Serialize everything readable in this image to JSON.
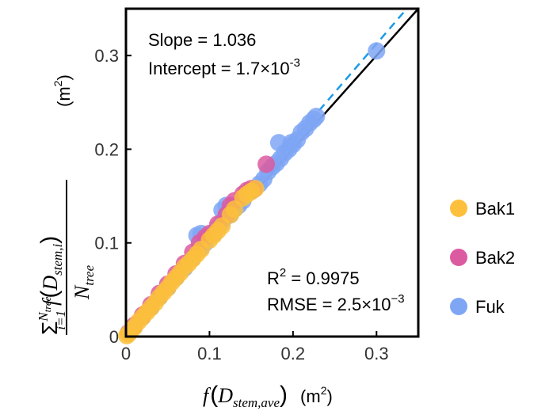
{
  "chart_data": {
    "type": "scatter",
    "title": "",
    "xlabel": "f(D_stem,ave) (m²)",
    "ylabel": "Σ_{i=1}^{N_tree} f(D_stem,i) / N_tree (m²)",
    "xlim": [
      0,
      0.35
    ],
    "ylim": [
      0,
      0.35
    ],
    "x_ticks": [
      0,
      0.1,
      0.2,
      0.3
    ],
    "y_ticks": [
      0,
      0.1,
      0.2,
      0.3
    ],
    "x_tick_labels": [
      "0",
      "0.1",
      "0.2",
      "0.3"
    ],
    "y_tick_labels": [
      "0",
      "0.1",
      "0.2",
      "0.3"
    ],
    "grid": false,
    "legend_position": "right",
    "reference_lines": [
      {
        "type": "1:1",
        "style": "solid",
        "color": "#000000"
      },
      {
        "type": "fit",
        "style": "dashed",
        "color": "#1a9be8",
        "slope": 1.036,
        "intercept": 0.0017
      }
    ],
    "annotations": {
      "slope": "Slope = 1.036",
      "intercept_prefix": "Intercept = 1.7×10",
      "intercept_exp": "-3",
      "r2_prefix": "R",
      "r2_sup": "2",
      "r2_suffix": " = 0.9975",
      "rmse_prefix": "RMSE = 2.5×10",
      "rmse_exp": "−3"
    },
    "axis_labels": {
      "x_f": "f",
      "x_D": "D",
      "x_sub": "stem,ave",
      "x_unit": "(m",
      "x_unit_sup": "2",
      "x_unit_close": ")",
      "y_sigma": "Σ",
      "y_sum_sup": "N",
      "y_sum_sup_sub": "tree",
      "y_sum_sub": "i=1",
      "y_f": "f",
      "y_D": "D",
      "y_sub": "stem,i",
      "y_den": "N",
      "y_den_sub": "tree",
      "y_unit": "(m",
      "y_unit_sup": "2",
      "y_unit_close": ")"
    },
    "series": [
      {
        "name": "Fuk",
        "color": "#7fa6f5",
        "points": [
          [
            0.004,
            0.004
          ],
          [
            0.01,
            0.011
          ],
          [
            0.02,
            0.021
          ],
          [
            0.03,
            0.031
          ],
          [
            0.04,
            0.042
          ],
          [
            0.05,
            0.052
          ],
          [
            0.06,
            0.063
          ],
          [
            0.07,
            0.073
          ],
          [
            0.08,
            0.084
          ],
          [
            0.09,
            0.095
          ],
          [
            0.095,
            0.1
          ],
          [
            0.1,
            0.108
          ],
          [
            0.105,
            0.11
          ],
          [
            0.11,
            0.116
          ],
          [
            0.115,
            0.122
          ],
          [
            0.12,
            0.128
          ],
          [
            0.125,
            0.13
          ],
          [
            0.13,
            0.136
          ],
          [
            0.135,
            0.14
          ],
          [
            0.14,
            0.145
          ],
          [
            0.15,
            0.155
          ],
          [
            0.16,
            0.163
          ],
          [
            0.165,
            0.168
          ],
          [
            0.17,
            0.176
          ],
          [
            0.175,
            0.181
          ],
          [
            0.18,
            0.185
          ],
          [
            0.185,
            0.19
          ],
          [
            0.19,
            0.196
          ],
          [
            0.195,
            0.2
          ],
          [
            0.2,
            0.205
          ],
          [
            0.205,
            0.21
          ],
          [
            0.21,
            0.218
          ],
          [
            0.215,
            0.222
          ],
          [
            0.22,
            0.228
          ],
          [
            0.225,
            0.232
          ],
          [
            0.228,
            0.235
          ],
          [
            0.183,
            0.207
          ],
          [
            0.198,
            0.207
          ],
          [
            0.3,
            0.305
          ],
          [
            0.115,
            0.135
          ],
          [
            0.12,
            0.14
          ],
          [
            0.085,
            0.108
          ],
          [
            0.09,
            0.11
          ]
        ]
      },
      {
        "name": "Bak2",
        "color": "#dc5aa0",
        "points": [
          [
            0.003,
            0.004
          ],
          [
            0.01,
            0.012
          ],
          [
            0.02,
            0.023
          ],
          [
            0.03,
            0.034
          ],
          [
            0.04,
            0.046
          ],
          [
            0.05,
            0.056
          ],
          [
            0.06,
            0.067
          ],
          [
            0.07,
            0.078
          ],
          [
            0.08,
            0.09
          ],
          [
            0.088,
            0.1
          ],
          [
            0.095,
            0.106
          ],
          [
            0.1,
            0.11
          ],
          [
            0.11,
            0.12
          ],
          [
            0.12,
            0.13
          ],
          [
            0.125,
            0.14
          ],
          [
            0.13,
            0.145
          ],
          [
            0.14,
            0.152
          ],
          [
            0.145,
            0.156
          ],
          [
            0.15,
            0.158
          ],
          [
            0.153,
            0.157
          ],
          [
            0.168,
            0.184
          ]
        ]
      },
      {
        "name": "Bak1",
        "color": "#fcc03c",
        "points": [
          [
            0.001,
            0.001
          ],
          [
            0.003,
            0.003
          ],
          [
            0.006,
            0.006
          ],
          [
            0.01,
            0.01
          ],
          [
            0.015,
            0.016
          ],
          [
            0.02,
            0.021
          ],
          [
            0.025,
            0.026
          ],
          [
            0.03,
            0.031
          ],
          [
            0.035,
            0.036
          ],
          [
            0.04,
            0.042
          ],
          [
            0.045,
            0.047
          ],
          [
            0.05,
            0.052
          ],
          [
            0.055,
            0.058
          ],
          [
            0.06,
            0.063
          ],
          [
            0.065,
            0.068
          ],
          [
            0.07,
            0.074
          ],
          [
            0.075,
            0.078
          ],
          [
            0.08,
            0.083
          ],
          [
            0.085,
            0.088
          ],
          [
            0.09,
            0.093
          ],
          [
            0.1,
            0.103
          ],
          [
            0.105,
            0.108
          ],
          [
            0.11,
            0.113
          ],
          [
            0.115,
            0.118
          ],
          [
            0.125,
            0.13
          ],
          [
            0.13,
            0.136
          ],
          [
            0.14,
            0.148
          ],
          [
            0.145,
            0.152
          ],
          [
            0.15,
            0.155
          ],
          [
            0.155,
            0.158
          ]
        ]
      }
    ],
    "legend": [
      {
        "name": "Bak1",
        "color": "#fcc03c"
      },
      {
        "name": "Bak2",
        "color": "#dc5aa0"
      },
      {
        "name": "Fuk",
        "color": "#7fa6f5"
      }
    ]
  }
}
